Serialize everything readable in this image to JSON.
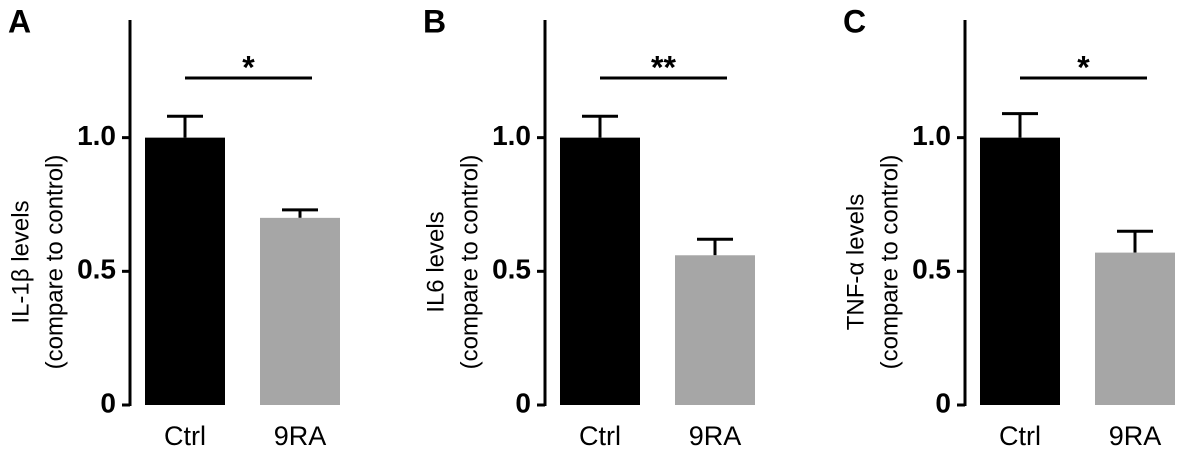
{
  "chart_data": [
    {
      "type": "bar",
      "panel": "A",
      "ylabel": [
        "IL-1β levels",
        "(compare to control)"
      ],
      "categories": [
        "Ctrl",
        "9RA"
      ],
      "values": [
        1.0,
        0.7
      ],
      "errors": [
        0.08,
        0.03
      ],
      "colors": [
        "#000000",
        "#a6a6a6"
      ],
      "ylim": [
        0,
        1.44
      ],
      "yticks": [
        0,
        0.5,
        {
          "value": 1,
          "label": "1.0"
        }
      ],
      "annotation": "*"
    },
    {
      "type": "bar",
      "panel": "B",
      "ylabel": [
        "IL6 levels",
        "(compare to control)"
      ],
      "categories": [
        "Ctrl",
        "9RA"
      ],
      "values": [
        1.0,
        0.56
      ],
      "errors": [
        0.08,
        0.06
      ],
      "colors": [
        "#000000",
        "#a6a6a6"
      ],
      "ylim": [
        0,
        1.44
      ],
      "yticks": [
        0,
        0.5,
        {
          "value": 1,
          "label": "1.0"
        }
      ],
      "annotation": "**"
    },
    {
      "type": "bar",
      "panel": "C",
      "ylabel": [
        "TNF-α levels",
        "(compare to control)"
      ],
      "categories": [
        "Ctrl",
        "9RA"
      ],
      "values": [
        1.0,
        0.57
      ],
      "errors": [
        0.09,
        0.08
      ],
      "colors": [
        "#000000",
        "#a6a6a6"
      ],
      "ylim": [
        0,
        1.44
      ],
      "yticks": [
        0,
        0.5,
        {
          "value": 1,
          "label": "1.0"
        }
      ],
      "annotation": "*"
    }
  ]
}
